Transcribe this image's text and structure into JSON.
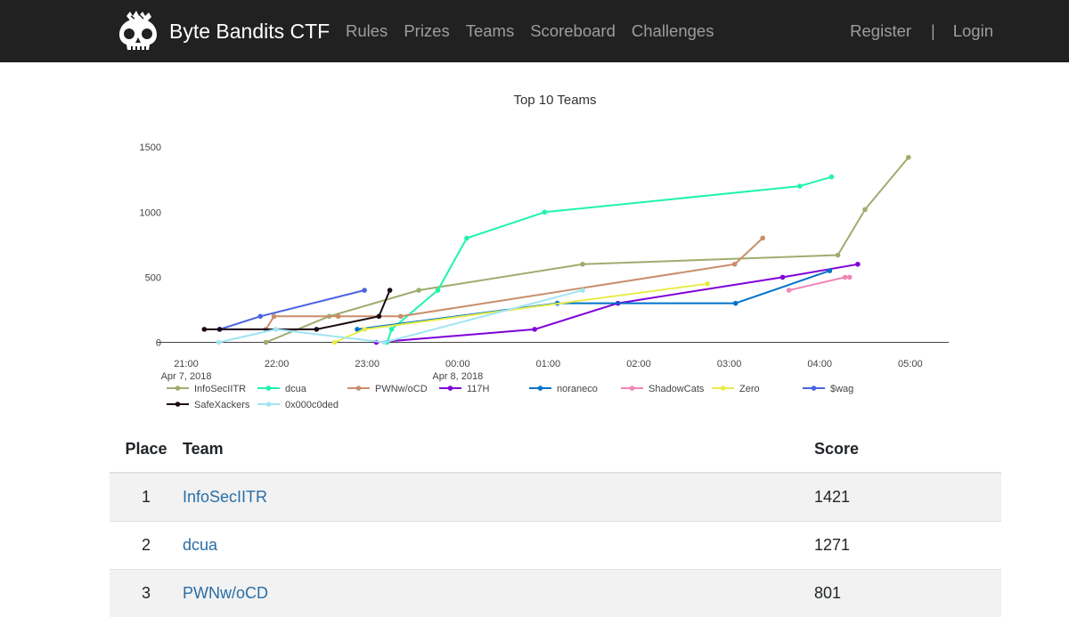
{
  "nav": {
    "brand": "Byte Bandits CTF",
    "links": [
      "Rules",
      "Prizes",
      "Teams",
      "Scoreboard",
      "Challenges"
    ],
    "register": "Register",
    "separator": "|",
    "login": "Login"
  },
  "chart_data": {
    "type": "line",
    "title": "Top 10 Teams",
    "xlabel": "",
    "ylabel": "",
    "ylim": [
      0,
      1600
    ],
    "yticks": [
      0,
      500,
      1000,
      1500
    ],
    "xlim": [
      20.93,
      29.6
    ],
    "xticks": [
      {
        "x": 21,
        "label": "21:00",
        "sub": "Apr 7, 2018"
      },
      {
        "x": 22,
        "label": "22:00",
        "sub": ""
      },
      {
        "x": 23,
        "label": "23:00",
        "sub": ""
      },
      {
        "x": 24,
        "label": "00:00",
        "sub": "Apr 8, 2018"
      },
      {
        "x": 25,
        "label": "01:00",
        "sub": ""
      },
      {
        "x": 26,
        "label": "02:00",
        "sub": ""
      },
      {
        "x": 27,
        "label": "03:00",
        "sub": ""
      },
      {
        "x": 28,
        "label": "04:00",
        "sub": ""
      },
      {
        "x": 29,
        "label": "05:00",
        "sub": ""
      }
    ],
    "legend_position": "bottom",
    "series": [
      {
        "name": "InfoSecIITR",
        "color": "#9dad6f",
        "points": [
          [
            21.88,
            0
          ],
          [
            22.58,
            200
          ],
          [
            23.57,
            400
          ],
          [
            25.38,
            600
          ],
          [
            28.2,
            670
          ],
          [
            28.5,
            1020
          ],
          [
            28.98,
            1421
          ]
        ]
      },
      {
        "name": "dcua",
        "color": "#1ef5a9",
        "points": [
          [
            23.22,
            0
          ],
          [
            23.27,
            100
          ],
          [
            23.78,
            400
          ],
          [
            24.1,
            800
          ],
          [
            24.96,
            1000
          ],
          [
            27.78,
            1200
          ],
          [
            28.13,
            1271
          ]
        ]
      },
      {
        "name": "PWNw/oCD",
        "color": "#c98d6b",
        "points": [
          [
            21.88,
            100
          ],
          [
            21.97,
            200
          ],
          [
            22.68,
            200
          ],
          [
            23.37,
            200
          ],
          [
            27.06,
            600
          ],
          [
            27.37,
            801
          ]
        ]
      },
      {
        "name": "117H",
        "color": "#7f00d9",
        "points": [
          [
            23.1,
            0
          ],
          [
            24.85,
            100
          ],
          [
            25.77,
            300
          ],
          [
            27.59,
            500
          ],
          [
            28.42,
            600
          ]
        ]
      },
      {
        "name": "noraneco",
        "color": "#0073c9",
        "points": [
          [
            22.89,
            100
          ],
          [
            25.1,
            300
          ],
          [
            27.07,
            300
          ],
          [
            28.11,
            550
          ]
        ]
      },
      {
        "name": "ShadowCats",
        "color": "#f085b6",
        "points": [
          [
            27.66,
            400
          ],
          [
            28.28,
            500
          ],
          [
            28.33,
            500
          ]
        ]
      },
      {
        "name": "Zero",
        "color": "#e8ec49",
        "points": [
          [
            22.64,
            0
          ],
          [
            22.97,
            100
          ],
          [
            26.76,
            450
          ]
        ]
      },
      {
        "name": "$wag",
        "color": "#4a64e0",
        "points": [
          [
            21.37,
            100
          ],
          [
            21.82,
            200
          ],
          [
            22.97,
            400
          ]
        ]
      },
      {
        "name": "SafeXackers",
        "color": "#1b0a14",
        "points": [
          [
            21.2,
            100
          ],
          [
            21.37,
            100
          ],
          [
            22.44,
            100
          ],
          [
            23.13,
            200
          ],
          [
            23.25,
            400
          ]
        ]
      },
      {
        "name": "0x000c0ded",
        "color": "#9fe4f2",
        "points": [
          [
            21.36,
            0
          ],
          [
            21.99,
            100
          ],
          [
            23.19,
            0
          ],
          [
            25.38,
            400
          ]
        ]
      }
    ]
  },
  "table": {
    "headers": {
      "place": "Place",
      "team": "Team",
      "score": "Score"
    },
    "rows": [
      {
        "place": "1",
        "team": "InfoSecIITR",
        "score": "1421"
      },
      {
        "place": "2",
        "team": "dcua",
        "score": "1271"
      },
      {
        "place": "3",
        "team": "PWNw/oCD",
        "score": "801"
      }
    ]
  }
}
